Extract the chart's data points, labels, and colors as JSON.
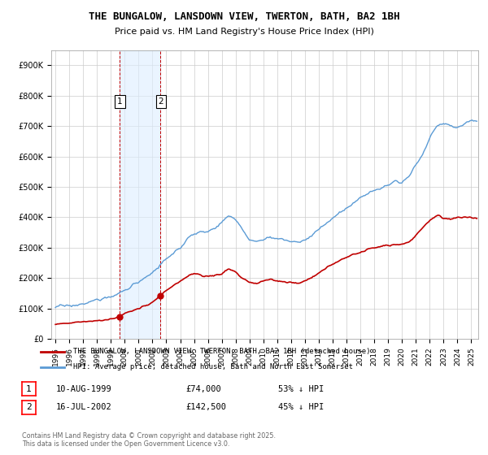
{
  "title": "THE BUNGALOW, LANSDOWN VIEW, TWERTON, BATH, BA2 1BH",
  "subtitle": "Price paid vs. HM Land Registry's House Price Index (HPI)",
  "ylim": [
    0,
    950000
  ],
  "xlim_start": 1994.7,
  "xlim_end": 2025.5,
  "yticks": [
    0,
    100000,
    200000,
    300000,
    400000,
    500000,
    600000,
    700000,
    800000,
    900000
  ],
  "ytick_labels": [
    "£0",
    "£100K",
    "£200K",
    "£300K",
    "£400K",
    "£500K",
    "£600K",
    "£700K",
    "£800K",
    "£900K"
  ],
  "xticks": [
    1995,
    1996,
    1997,
    1998,
    1999,
    2000,
    2001,
    2002,
    2003,
    2004,
    2005,
    2006,
    2007,
    2008,
    2009,
    2010,
    2011,
    2012,
    2013,
    2014,
    2015,
    2016,
    2017,
    2018,
    2019,
    2020,
    2021,
    2022,
    2023,
    2024,
    2025
  ],
  "hpi_color": "#5b9bd5",
  "price_color": "#c00000",
  "sale1_x": 1999.61,
  "sale1_y": 74000,
  "sale2_x": 2002.54,
  "sale2_y": 142500,
  "sale1_label": "1",
  "sale2_label": "2",
  "vline1_x": 1999.61,
  "vline2_x": 2002.54,
  "shade_color": "#ddeeff",
  "shade_alpha": 0.6,
  "legend_line1": "THE BUNGALOW, LANSDOWN VIEW, TWERTON, BATH, BA2 1BH (detached house)",
  "legend_line2": "HPI: Average price, detached house, Bath and North East Somerset",
  "footnote": "Contains HM Land Registry data © Crown copyright and database right 2025.\nThis data is licensed under the Open Government Licence v3.0.",
  "table_row1_num": "1",
  "table_row1_date": "10-AUG-1999",
  "table_row1_price": "£74,000",
  "table_row1_hpi": "53% ↓ HPI",
  "table_row2_num": "2",
  "table_row2_date": "16-JUL-2002",
  "table_row2_price": "£142,500",
  "table_row2_hpi": "45% ↓ HPI",
  "bg_color": "#ffffff",
  "grid_color": "#cccccc"
}
